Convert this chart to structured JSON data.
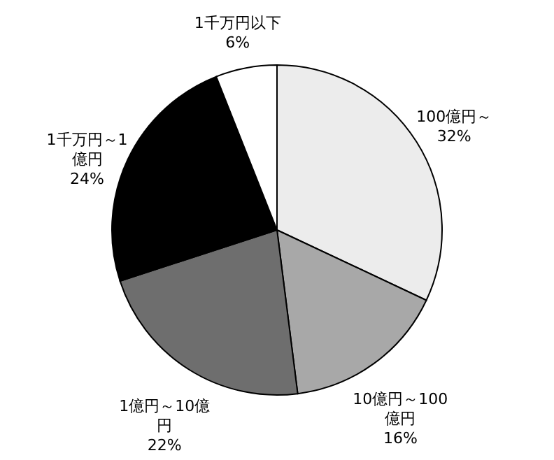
{
  "chart_data": {
    "type": "pie",
    "categories": [
      "100億円～",
      "10億円～100億円",
      "1億円～10億円",
      "1千万円～1億円",
      "1千万円以下"
    ],
    "values": [
      32,
      16,
      22,
      24,
      6
    ],
    "colors": [
      "#ececec",
      "#a8a8a8",
      "#6e6e6e",
      "#000000",
      "#ffffff"
    ],
    "value_labels": [
      "32%",
      "16%",
      "22%",
      "24%",
      "6%"
    ]
  }
}
